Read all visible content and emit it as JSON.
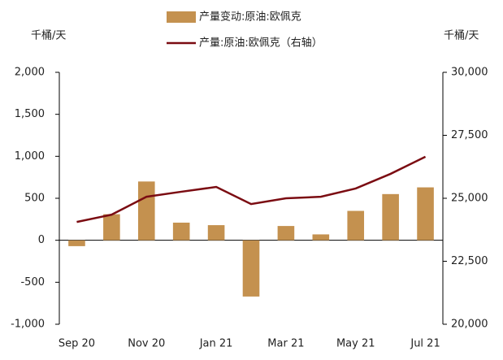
{
  "chart_data": {
    "type": "bar",
    "y_unit": "千桶/天",
    "y2_unit": "千桶/天",
    "categories": [
      "Sep 20",
      null,
      "Nov 20",
      null,
      "Jan 21",
      null,
      "Mar 21",
      null,
      "May 21",
      null,
      "Jul 21"
    ],
    "series": [
      {
        "name": "产量变动:原油:欧佩克",
        "type": "bar",
        "color": "#c4914f",
        "values": [
          -70,
          310,
          700,
          210,
          180,
          -670,
          170,
          70,
          350,
          550,
          630
        ]
      },
      {
        "name": "产量:原油:欧佩克（右轴）",
        "type": "line",
        "axis": "y2",
        "color": "#7b0c12",
        "values": [
          24060,
          24350,
          25060,
          25260,
          25450,
          24770,
          25000,
          25060,
          25390,
          25970,
          26650
        ]
      }
    ],
    "ylim": [
      -1000,
      2000
    ],
    "yticks": [
      {
        "value": -1000,
        "label": "-1,000"
      },
      -500,
      0,
      500,
      {
        "value": 1000,
        "label": "1,000"
      },
      {
        "value": 1500,
        "label": "1,500"
      },
      {
        "value": 2000,
        "label": "2,000"
      }
    ],
    "y2lim": [
      20000,
      30000
    ],
    "y2ticks": [
      {
        "value": 20000,
        "label": "20,000"
      },
      {
        "value": 22500,
        "label": "22,500"
      },
      {
        "value": 25000,
        "label": "25,000"
      },
      {
        "value": 27500,
        "label": "27,500"
      },
      {
        "value": 30000,
        "label": "30,000"
      }
    ]
  }
}
